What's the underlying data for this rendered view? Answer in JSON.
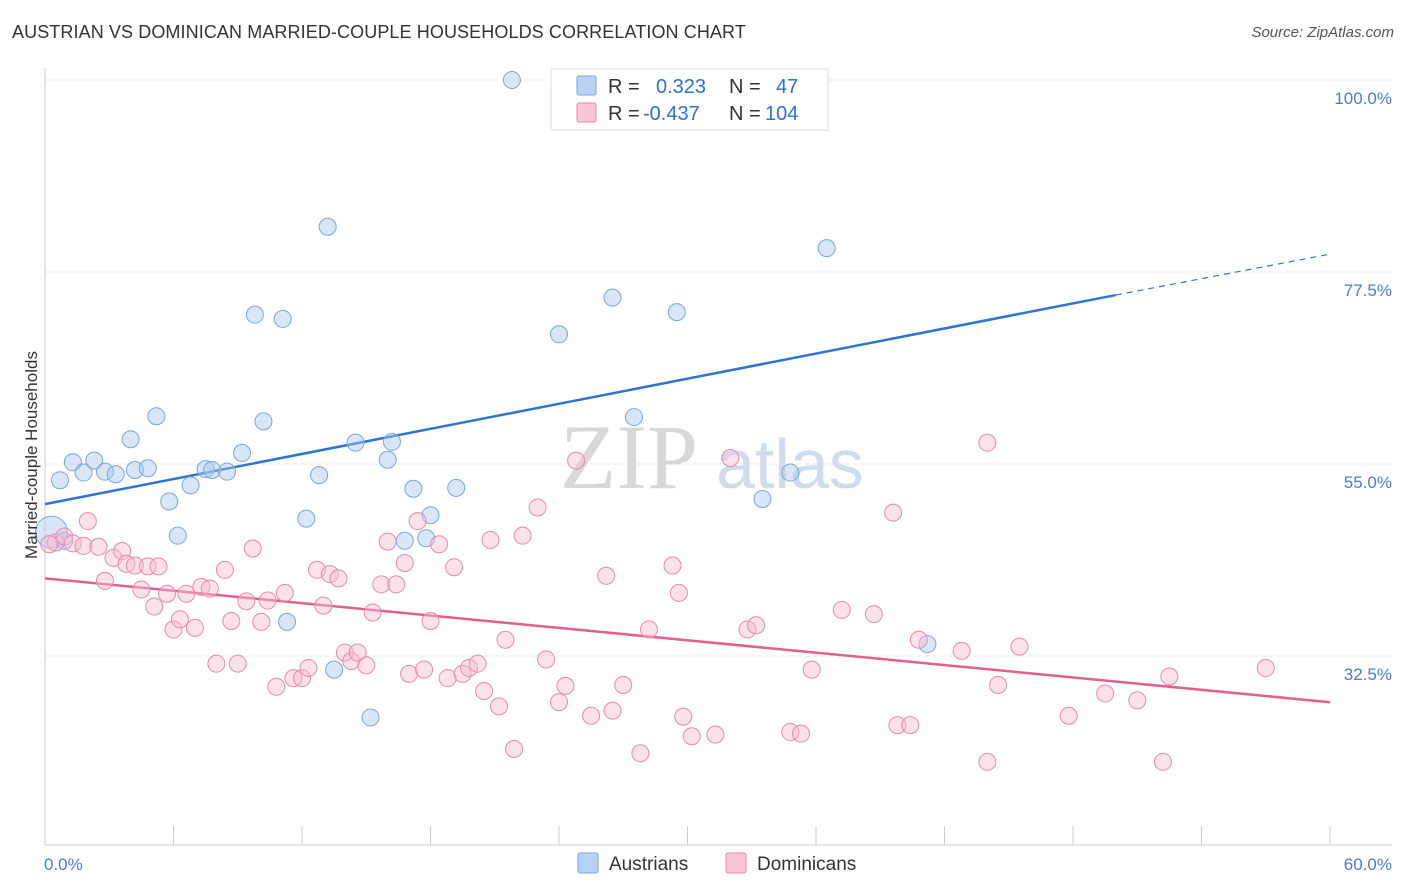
{
  "title": "AUSTRIAN VS DOMINICAN MARRIED-COUPLE HOUSEHOLDS CORRELATION CHART",
  "source": "Source: ZipAtlas.com",
  "watermark": {
    "zip": "ZIP",
    "atlas": "atlas"
  },
  "legend": {
    "r_label": "R =",
    "n_label": "N =",
    "series": [
      {
        "name": "Austrians",
        "r": "0.323",
        "n": "47",
        "color": "#a9c8f0",
        "stroke": "#7aa6e0"
      },
      {
        "name": "Dominicans",
        "r": "-0.437",
        "n": "104",
        "color": "#f6bcd0",
        "stroke": "#e88aab"
      }
    ]
  },
  "chart_data": {
    "type": "scatter",
    "title": "AUSTRIAN VS DOMINICAN MARRIED-COUPLE HOUSEHOLDS CORRELATION CHART",
    "xlabel": "",
    "ylabel": "Married-couple Households",
    "xlim": [
      0,
      60
    ],
    "ylim": [
      13,
      100
    ],
    "x_tick_labels": [
      "0.0%",
      "60.0%"
    ],
    "y_ticks": [
      {
        "value": 100,
        "label": "100.0%"
      },
      {
        "value": 77.5,
        "label": "77.5%"
      },
      {
        "value": 55,
        "label": "55.0%"
      },
      {
        "value": 32.5,
        "label": "32.5%"
      }
    ],
    "grid": true,
    "series": [
      {
        "name": "Austrians",
        "color": "#a9c8f0",
        "trend": {
          "x0": 0,
          "y0": 50.3,
          "x1": 50,
          "y1": 74.8,
          "dash_x1": 60,
          "dash_y1": 79.6,
          "color": "#2e74d0"
        },
        "points": [
          [
            0.7,
            53.1
          ],
          [
            1.3,
            55.2
          ],
          [
            1.8,
            54.0
          ],
          [
            2.3,
            55.4
          ],
          [
            2.8,
            54.1
          ],
          [
            3.3,
            53.8
          ],
          [
            4.0,
            57.9
          ],
          [
            4.2,
            54.3
          ],
          [
            4.8,
            54.5
          ],
          [
            5.2,
            60.6
          ],
          [
            5.8,
            50.6
          ],
          [
            6.2,
            46.6
          ],
          [
            6.8,
            52.5
          ],
          [
            7.5,
            54.4
          ],
          [
            7.8,
            54.3
          ],
          [
            8.5,
            54.1
          ],
          [
            9.2,
            56.3
          ],
          [
            9.8,
            72.5
          ],
          [
            10.2,
            60.0
          ],
          [
            11.1,
            72.0
          ],
          [
            11.3,
            36.5
          ],
          [
            12.2,
            48.6
          ],
          [
            12.8,
            53.7
          ],
          [
            13.2,
            82.8
          ],
          [
            13.5,
            30.9
          ],
          [
            14.5,
            57.5
          ],
          [
            15.2,
            25.3
          ],
          [
            16.0,
            55.5
          ],
          [
            16.2,
            57.6
          ],
          [
            16.8,
            46.0
          ],
          [
            17.2,
            52.1
          ],
          [
            17.8,
            46.3
          ],
          [
            18.0,
            49.0
          ],
          [
            19.2,
            52.2
          ],
          [
            21.8,
            100.0
          ],
          [
            24.0,
            70.2
          ],
          [
            26.5,
            74.5
          ],
          [
            27.5,
            60.5
          ],
          [
            27.8,
            100.0
          ],
          [
            29.5,
            72.8
          ],
          [
            33.0,
            99.8
          ],
          [
            33.5,
            50.9
          ],
          [
            34.8,
            54.0
          ],
          [
            36.5,
            80.3
          ],
          [
            41.2,
            33.9
          ],
          [
            0.3,
            47.0
          ],
          [
            0.9,
            46.0
          ]
        ]
      },
      {
        "name": "Dominicans",
        "color": "#f6bcd0",
        "trend": {
          "x0": 0,
          "y0": 41.6,
          "x1": 62,
          "y1": 26.6,
          "color": "#e0608e"
        },
        "points": [
          [
            0.5,
            45.8
          ],
          [
            0.9,
            46.5
          ],
          [
            1.3,
            45.7
          ],
          [
            1.8,
            45.4
          ],
          [
            2.0,
            48.3
          ],
          [
            2.5,
            45.3
          ],
          [
            2.8,
            41.3
          ],
          [
            3.2,
            44.0
          ],
          [
            3.6,
            44.8
          ],
          [
            3.8,
            43.3
          ],
          [
            4.2,
            43.1
          ],
          [
            4.5,
            40.3
          ],
          [
            4.8,
            43.0
          ],
          [
            5.1,
            38.3
          ],
          [
            5.3,
            43.0
          ],
          [
            5.7,
            39.8
          ],
          [
            6.0,
            35.6
          ],
          [
            6.3,
            36.8
          ],
          [
            6.6,
            39.8
          ],
          [
            7.0,
            35.8
          ],
          [
            7.3,
            40.6
          ],
          [
            7.7,
            40.4
          ],
          [
            8.0,
            31.6
          ],
          [
            8.4,
            42.6
          ],
          [
            8.7,
            36.6
          ],
          [
            9.0,
            31.6
          ],
          [
            9.4,
            38.9
          ],
          [
            9.7,
            45.1
          ],
          [
            10.1,
            36.5
          ],
          [
            10.4,
            39.0
          ],
          [
            10.8,
            28.9
          ],
          [
            11.2,
            39.9
          ],
          [
            11.6,
            29.9
          ],
          [
            12.0,
            29.9
          ],
          [
            12.3,
            31.1
          ],
          [
            12.7,
            42.6
          ],
          [
            13.0,
            38.4
          ],
          [
            13.3,
            42.1
          ],
          [
            13.7,
            41.6
          ],
          [
            14.0,
            32.9
          ],
          [
            14.3,
            31.9
          ],
          [
            14.6,
            32.9
          ],
          [
            15.0,
            31.4
          ],
          [
            15.3,
            37.6
          ],
          [
            15.7,
            40.9
          ],
          [
            16.0,
            45.9
          ],
          [
            16.4,
            40.9
          ],
          [
            16.8,
            43.4
          ],
          [
            17.0,
            30.4
          ],
          [
            17.4,
            48.3
          ],
          [
            17.7,
            30.9
          ],
          [
            18.0,
            36.6
          ],
          [
            18.4,
            45.6
          ],
          [
            18.8,
            29.9
          ],
          [
            19.1,
            42.9
          ],
          [
            19.5,
            30.4
          ],
          [
            19.8,
            31.1
          ],
          [
            20.2,
            31.6
          ],
          [
            20.5,
            28.4
          ],
          [
            20.8,
            46.1
          ],
          [
            21.2,
            26.6
          ],
          [
            21.5,
            34.4
          ],
          [
            21.9,
            21.6
          ],
          [
            22.3,
            46.6
          ],
          [
            23.0,
            49.9
          ],
          [
            23.4,
            32.1
          ],
          [
            24.0,
            27.1
          ],
          [
            24.3,
            29.0
          ],
          [
            24.8,
            55.4
          ],
          [
            25.5,
            25.5
          ],
          [
            26.2,
            41.9
          ],
          [
            26.5,
            26.1
          ],
          [
            27.0,
            29.1
          ],
          [
            27.8,
            21.1
          ],
          [
            28.2,
            35.6
          ],
          [
            29.3,
            43.1
          ],
          [
            29.6,
            39.9
          ],
          [
            29.8,
            25.4
          ],
          [
            30.2,
            23.1
          ],
          [
            31.3,
            23.3
          ],
          [
            32.0,
            55.7
          ],
          [
            32.8,
            35.6
          ],
          [
            33.2,
            36.1
          ],
          [
            34.8,
            23.6
          ],
          [
            35.3,
            23.4
          ],
          [
            35.8,
            30.9
          ],
          [
            37.2,
            37.9
          ],
          [
            38.7,
            37.4
          ],
          [
            39.8,
            24.4
          ],
          [
            40.4,
            24.4
          ],
          [
            40.8,
            34.4
          ],
          [
            42.8,
            33.1
          ],
          [
            44.0,
            57.5
          ],
          [
            44.0,
            20.1
          ],
          [
            44.5,
            29.1
          ],
          [
            45.5,
            33.6
          ],
          [
            47.8,
            25.5
          ],
          [
            49.5,
            28.1
          ],
          [
            51.0,
            27.3
          ],
          [
            52.2,
            20.1
          ],
          [
            52.5,
            30.1
          ],
          [
            57.0,
            31.1
          ],
          [
            39.6,
            49.3
          ],
          [
            0.2,
            45.6
          ]
        ]
      }
    ]
  },
  "bottom_legend": [
    "Austrians",
    "Dominicans"
  ]
}
